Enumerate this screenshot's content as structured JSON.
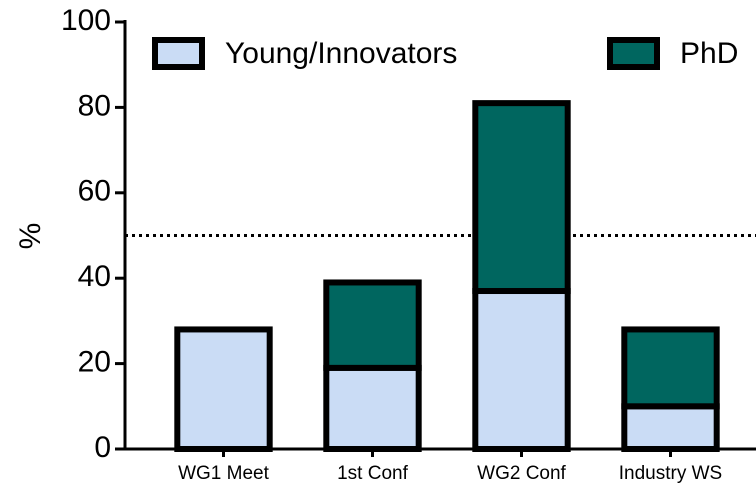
{
  "chart_data": {
    "type": "stacked_bar",
    "categories": [
      "WG1 Meet",
      "1st Conf",
      "WG2 Conf",
      "Industry WS"
    ],
    "series": [
      {
        "name": "Young/Innovators",
        "color": "#cadcf5",
        "values": [
          28,
          19,
          37,
          10
        ]
      },
      {
        "name": "PhD",
        "color": "#00665f",
        "values": [
          0,
          20,
          44,
          18
        ]
      }
    ],
    "ylabel": "%",
    "ylim": [
      0,
      100
    ],
    "yticks": [
      0,
      20,
      40,
      60,
      80,
      100
    ],
    "reference_line": 50,
    "legend": "top"
  }
}
